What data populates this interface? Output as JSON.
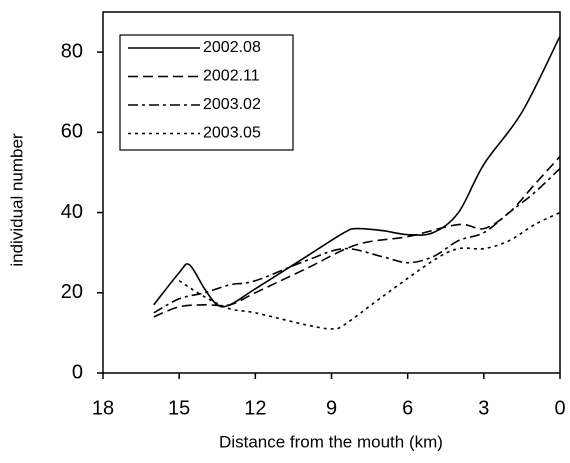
{
  "chart_data": {
    "type": "line",
    "xlabel": "Distance from the mouth (km)",
    "ylabel": "individual number",
    "xlim": [
      18,
      0
    ],
    "xticks": [
      18,
      15,
      12,
      9,
      6,
      3,
      0
    ],
    "ylim": [
      0,
      90
    ],
    "yticks": [
      0,
      20,
      40,
      60,
      80
    ],
    "grid": false,
    "legend": "upper left",
    "series": [
      {
        "name": "2002.08",
        "color": "#000000",
        "line_style": "solid",
        "x": [
          16,
          15,
          14.6,
          14,
          13.5,
          13,
          12,
          10,
          8.5,
          8,
          7,
          6,
          5,
          4,
          3,
          1.5,
          0
        ],
        "values": [
          17,
          25,
          27,
          21,
          17,
          17,
          21,
          29,
          35,
          36,
          35.5,
          34.5,
          35,
          40,
          52,
          65,
          84
        ]
      },
      {
        "name": "2002.11",
        "color": "#000000",
        "line_style": "dashed",
        "x": [
          16,
          15,
          14,
          13,
          12,
          10,
          8,
          6,
          4,
          3,
          2,
          1,
          0
        ],
        "values": [
          14,
          16.5,
          17,
          17,
          20,
          26,
          32,
          34,
          37,
          36,
          40,
          47,
          54
        ]
      },
      {
        "name": "2003.02",
        "color": "#000000",
        "line_style": "dashdot",
        "x": [
          16,
          15,
          14,
          13,
          12,
          10,
          8.5,
          7,
          6,
          5,
          4,
          3,
          2,
          1,
          0
        ],
        "values": [
          15,
          18.5,
          20,
          22,
          23,
          28,
          31,
          29,
          27.5,
          29,
          33,
          35,
          40,
          45,
          51
        ]
      },
      {
        "name": "2003.05",
        "color": "#000000",
        "line_style": "dotted",
        "x": [
          15,
          14,
          13,
          12,
          10,
          9,
          8.5,
          7,
          5,
          4,
          3,
          2,
          1,
          0
        ],
        "values": [
          23,
          19,
          16,
          15,
          12,
          11,
          12,
          19,
          28,
          31,
          31,
          33,
          37,
          40
        ]
      }
    ]
  }
}
